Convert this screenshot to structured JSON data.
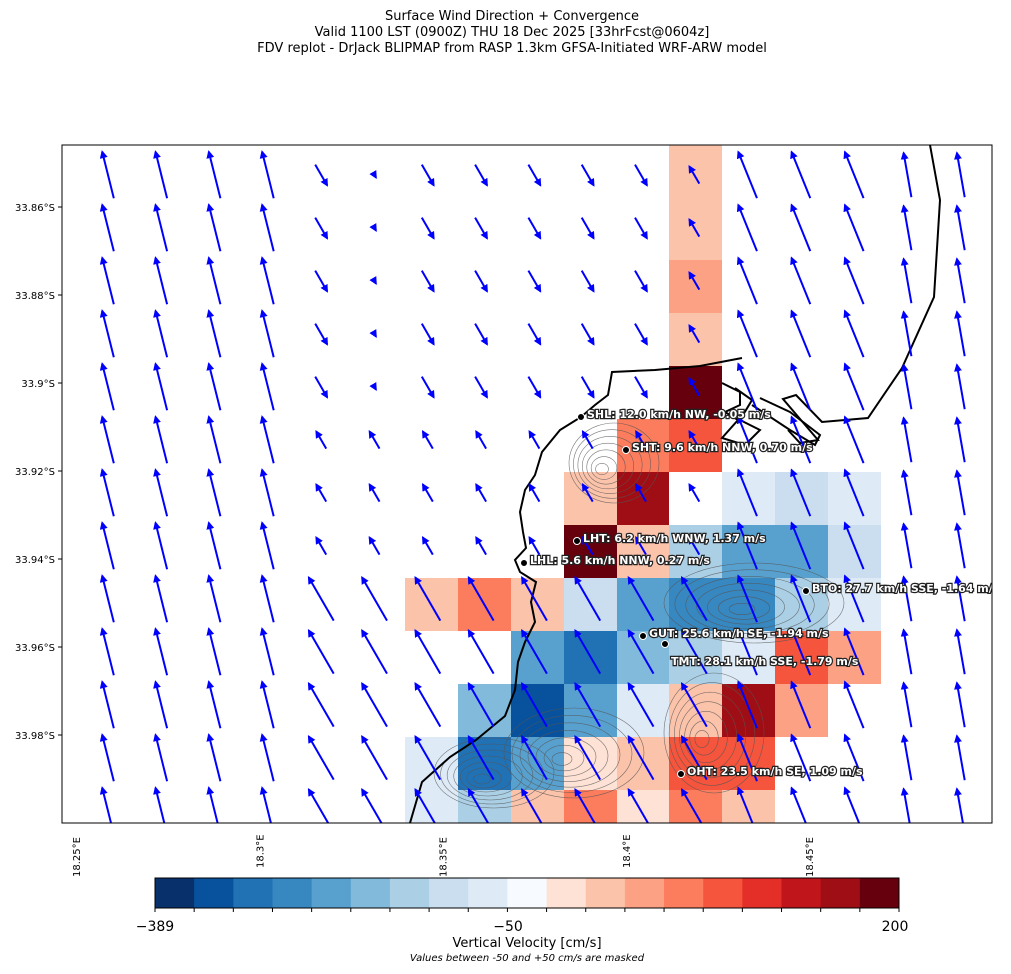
{
  "title": {
    "line1": "Surface Wind Direction + Convergence",
    "line2": "Valid 1100 LST (0900Z) THU 18 Dec 2025 [33hrFcst@0604z]",
    "line3": "FDV replot - DrJack BLIPMAP from RASP 1.3km GFSA-Initiated WRF-ARW model"
  },
  "axes": {
    "y_ticks": [
      "33.86°S",
      "33.88°S",
      "33.9°S",
      "33.92°S",
      "33.94°S",
      "33.96°S",
      "33.98°S"
    ],
    "x_ticks": [
      "18.25°E",
      "18.3°E",
      "18.35°E",
      "18.4°E",
      "18.45°E"
    ]
  },
  "stations": [
    {
      "id": "SHL",
      "label": "SHL: 12.0 km/h NW, -0.05 m/s"
    },
    {
      "id": "SHT",
      "label": "SHT: 9.6 km/h NNW, 0.70 m/s"
    },
    {
      "id": "LHT",
      "label": "LHT: 6.2 km/h WNW, 1.37 m/s"
    },
    {
      "id": "LHL",
      "label": "LHL: 5.6 km/h NNW, 0.27 m/s"
    },
    {
      "id": "BTO",
      "label": "BTO: 27.7 km/h SSE, -1.64 m/s"
    },
    {
      "id": "GUT",
      "label": "GUT: 25.6 km/h SE, -1.94 m/s"
    },
    {
      "id": "TMT",
      "label": "TMT: 28.1 km/h SSE, -1.79 m/s"
    },
    {
      "id": "OHT",
      "label": "OHT: 23.5 km/h SE, 1.09 m/s"
    }
  ],
  "colorbar": {
    "label": "Vertical Velocity [cm/s]",
    "note": "Values between -50 and +50 cm/s are masked",
    "tick_labels": [
      "−389",
      "−50",
      "200"
    ],
    "colors": [
      "#08306b",
      "#08519c",
      "#2171b5",
      "#3787c0",
      "#58a1cf",
      "#81badb",
      "#abd0e6",
      "#cadef0",
      "#deebf7",
      "#f7fbff",
      "#fee2d5",
      "#fcc3ab",
      "#fca183",
      "#fb7d5d",
      "#f5553c",
      "#e32f27",
      "#c0151b",
      "#9f0e14",
      "#67000d"
    ]
  },
  "vertical_velocity_levels": [
    [
      null,
      null,
      null,
      null,
      null,
      11,
      null,
      null,
      null
    ],
    [
      null,
      null,
      null,
      null,
      null,
      11,
      null,
      null,
      null
    ],
    [
      null,
      null,
      null,
      null,
      null,
      11,
      null,
      null,
      null
    ],
    [
      null,
      null,
      null,
      null,
      null,
      12,
      null,
      null,
      null
    ],
    [
      null,
      null,
      null,
      null,
      null,
      11,
      null,
      null,
      null
    ],
    [
      null,
      null,
      null,
      null,
      null,
      18,
      null,
      null,
      null
    ],
    [
      null,
      null,
      null,
      null,
      13,
      14,
      null,
      null,
      null
    ],
    [
      null,
      null,
      null,
      11,
      17,
      null,
      8,
      7,
      8
    ],
    [
      null,
      null,
      null,
      18,
      11,
      6,
      4,
      4,
      7
    ],
    [
      11,
      13,
      11,
      7,
      4,
      3,
      3,
      6,
      8
    ],
    [
      null,
      null,
      4,
      2,
      5,
      6,
      8,
      14,
      12
    ],
    [
      null,
      5,
      1,
      4,
      8,
      11,
      17,
      12,
      null
    ],
    [
      8,
      2,
      4,
      10,
      11,
      14,
      14,
      null,
      null
    ],
    [
      8,
      6,
      11,
      13,
      10,
      13,
      11,
      null,
      null
    ]
  ],
  "colors": {
    "wind_arrow": "#0000ff",
    "coastline": "#000000",
    "contour": "#555555"
  }
}
